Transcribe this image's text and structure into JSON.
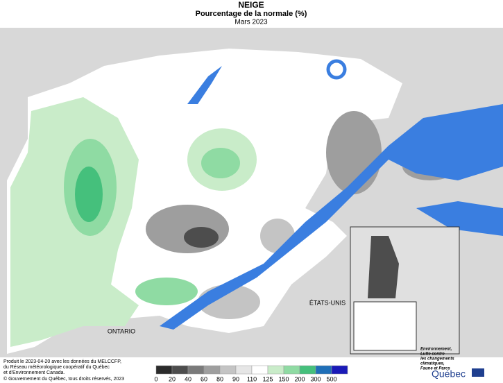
{
  "header": {
    "title": "NEIGE",
    "subtitle": "Pourcentage de la normale (%)",
    "period": "Mars 2023"
  },
  "map": {
    "labels": [
      "ONTARIO",
      "ÉTATS-UNIS"
    ]
  },
  "footer": {
    "credits": [
      "Produit le 2023-04-20 avec les données du MELCCFP,",
      "du Réseau météorologique coopératif du Québec",
      "et d'Environnement Canada."
    ],
    "copyright": "© Gouvernement du Québec, tous droits réservés, 2023"
  },
  "legend": {
    "ticks": [
      0,
      20,
      40,
      60,
      80,
      90,
      110,
      125,
      150,
      200,
      300,
      500
    ],
    "colors": [
      "#2b2b2b",
      "#4d4d4d",
      "#7a7a7a",
      "#9e9e9e",
      "#c4c4c4",
      "#e6e6e6",
      "#ffffff",
      "#c9ecc9",
      "#8fdba3",
      "#45c07c",
      "#1f6fb8",
      "#1a1ab8"
    ]
  },
  "logo": {
    "ministry": [
      "Environnement,",
      "Lutte contre",
      "les changements",
      "climatiques,",
      "Faune et Parcs"
    ],
    "name": "Québec"
  }
}
